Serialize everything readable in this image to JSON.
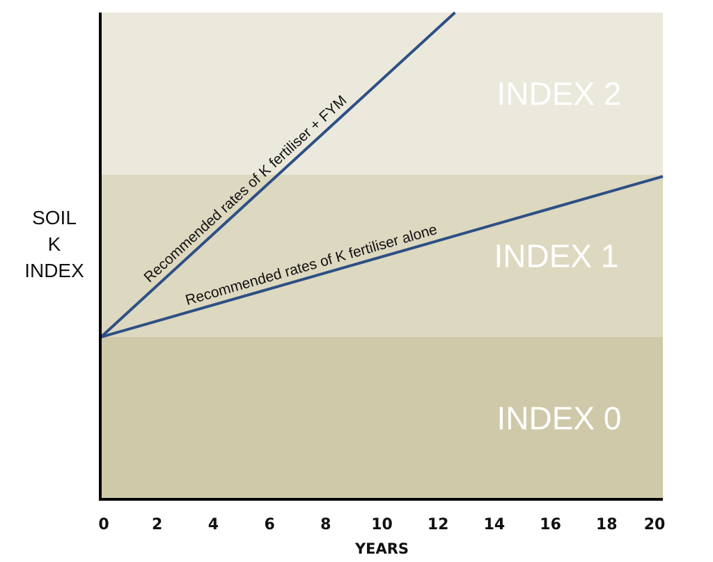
{
  "chart_data": {
    "type": "line",
    "title": "",
    "xlabel": "YEARS",
    "ylabel_lines": [
      "SOIL",
      "K",
      "INDEX"
    ],
    "xlim": [
      0,
      20
    ],
    "ylim": [
      -1,
      2
    ],
    "x_ticks": [
      0,
      2,
      4,
      6,
      8,
      10,
      12,
      14,
      16,
      18,
      20
    ],
    "grid": false,
    "bands": [
      {
        "label": "INDEX 0",
        "y_from": -1,
        "y_to": 0,
        "color": "#cfc9a9"
      },
      {
        "label": "INDEX 1",
        "y_from": 0,
        "y_to": 1,
        "color": "#ddd8c0"
      },
      {
        "label": "INDEX 2",
        "y_from": 1,
        "y_to": 2,
        "color": "#ebe9dc"
      }
    ],
    "series": [
      {
        "name": "Recommended rates of K fertiliser + FYM",
        "x": [
          0,
          12.6
        ],
        "y": [
          0,
          2
        ],
        "color": "#2e4f86"
      },
      {
        "name": "Recommended rates of K fertiliser alone",
        "x": [
          0,
          20
        ],
        "y": [
          0,
          0.99
        ],
        "color": "#2e4f86"
      }
    ]
  }
}
